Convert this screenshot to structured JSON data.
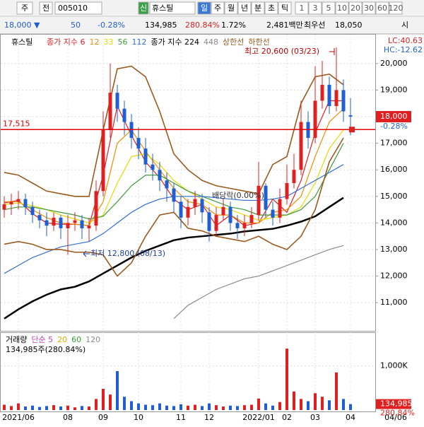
{
  "toolbar": {
    "market": "주",
    "mode": "전",
    "code": "005010",
    "badge": "신",
    "name": "휴스틸",
    "periods": [
      "일",
      "주",
      "월",
      "년",
      "분",
      "초",
      "틱"
    ],
    "intervals": [
      "1",
      "3",
      "5",
      "10",
      "20",
      "30",
      "60",
      "120"
    ]
  },
  "quote": {
    "price": "18,000",
    "arrow": "▼",
    "change": "50",
    "change_pct": "-0.28%",
    "volume": "134,985",
    "volume_ratio": "280.84%",
    "turnover_pct": "1.72%",
    "amount": "2,481백만",
    "best_label": "최우선",
    "best_price": "18,050",
    "extra": "시"
  },
  "chart_data": {
    "type": "candlestick",
    "title": "휴스틸",
    "corner_labels": [
      "LC:40.63",
      "HC:-12.62"
    ],
    "open": [
      14500,
      14700,
      14800,
      14900,
      14600,
      14300,
      14100,
      13900,
      14200,
      13800,
      14000,
      14100,
      13800,
      13900,
      15200,
      17500,
      18900,
      18300,
      17800,
      17200,
      16800,
      16200,
      16000,
      15600,
      15300,
      14800,
      14200,
      14600,
      14900,
      14400,
      13700,
      14300,
      14600,
      14000,
      13800,
      14000,
      14300,
      15400,
      14500,
      14200,
      14900,
      15500,
      16000,
      17800,
      17200,
      18600,
      19200,
      18400,
      19000,
      18050
    ],
    "high": [
      15000,
      15100,
      15200,
      15100,
      14800,
      14500,
      14400,
      14400,
      14300,
      14300,
      14400,
      14300,
      14200,
      15600,
      18200,
      20000,
      19200,
      18600,
      18100,
      17600,
      17200,
      16600,
      16300,
      15900,
      15500,
      15000,
      14900,
      15200,
      15100,
      14600,
      14600,
      14900,
      14800,
      14300,
      14300,
      14600,
      16300,
      15500,
      14800,
      15300,
      16200,
      16600,
      18600,
      18200,
      19900,
      20100,
      19500,
      20600,
      19400,
      18700
    ],
    "low": [
      14200,
      14300,
      14500,
      14300,
      14000,
      13800,
      13500,
      13700,
      13400,
      12800,
      13700,
      13400,
      13300,
      13700,
      15000,
      17200,
      17800,
      17300,
      16800,
      16400,
      15900,
      15600,
      15200,
      14800,
      14400,
      13800,
      13900,
      14300,
      14000,
      13300,
      13500,
      14100,
      13700,
      13400,
      13500,
      13800,
      14100,
      14200,
      13900,
      14000,
      14700,
      15300,
      15800,
      16800,
      17000,
      18300,
      18100,
      18200,
      17800,
      17300
    ],
    "close": [
      14700,
      14800,
      14900,
      14600,
      14300,
      14100,
      13900,
      14200,
      13800,
      14000,
      14100,
      13800,
      13900,
      15200,
      17500,
      18900,
      18300,
      17800,
      17200,
      16800,
      16200,
      16000,
      15600,
      15300,
      14800,
      14200,
      14600,
      14900,
      14400,
      13700,
      14300,
      14600,
      14000,
      13800,
      14000,
      14300,
      15400,
      14500,
      14200,
      14900,
      15500,
      16000,
      17800,
      17200,
      18600,
      19200,
      18400,
      19000,
      18200,
      18000
    ],
    "up_color": "#e02020",
    "down_color": "#1f5fd6",
    "line_x": [
      0,
      2,
      4,
      6,
      8,
      10,
      12,
      14,
      16,
      18,
      20,
      22,
      24,
      26,
      28,
      30,
      32,
      34,
      36,
      38,
      40,
      42,
      44,
      46,
      48
    ],
    "series": [
      {
        "name": "종가 지수 6",
        "color": "#e02020",
        "values": [
          14750,
          14850,
          14350,
          14000,
          13950,
          13950,
          13900,
          15800,
          18400,
          17300,
          16300,
          15700,
          14900,
          14500,
          14700,
          13900,
          14300,
          13900,
          14000,
          14900,
          14400,
          15600,
          17400,
          18600,
          18600
        ]
      },
      {
        "name": "12",
        "color": "#f08c00",
        "values": [
          14800,
          14800,
          14500,
          14200,
          14000,
          13950,
          13900,
          14800,
          17000,
          17500,
          16700,
          16000,
          15300,
          14800,
          14700,
          14300,
          14300,
          14000,
          14000,
          14400,
          14500,
          15000,
          16500,
          17800,
          18300
        ]
      },
      {
        "name": "33",
        "color": "#e8d800",
        "values": [
          14700,
          14750,
          14650,
          14500,
          14300,
          14150,
          14000,
          14300,
          15500,
          16500,
          16600,
          16200,
          15600,
          15200,
          14900,
          14600,
          14500,
          14300,
          14100,
          14200,
          14300,
          14600,
          15500,
          16800,
          17500
        ]
      },
      {
        "name": "56",
        "color": "#3c9a3c",
        "values": [
          14500,
          14600,
          14600,
          14500,
          14400,
          14300,
          14150,
          14250,
          14800,
          15400,
          15800,
          15800,
          15500,
          15200,
          15000,
          14800,
          14600,
          14500,
          14300,
          14300,
          14300,
          14500,
          15000,
          16000,
          17000
        ]
      },
      {
        "name": "112",
        "color": "#2f6fd8",
        "values": [
          12100,
          12400,
          12700,
          12900,
          13100,
          13200,
          13300,
          13600,
          14000,
          14400,
          14700,
          14900,
          15000,
          15000,
          15000,
          14950,
          14900,
          14850,
          14850,
          14900,
          15000,
          15300,
          15600,
          15900,
          16200
        ]
      },
      {
        "name": "종가 지수 224",
        "color": "#000000",
        "values": [
          10400,
          10750,
          11050,
          11300,
          11500,
          11600,
          11800,
          12100,
          12400,
          12700,
          12950,
          13150,
          13350,
          13450,
          13500,
          13550,
          13600,
          13680,
          13730,
          13780,
          13900,
          14050,
          14250,
          14600,
          14950
        ]
      },
      {
        "name": "448",
        "color": "#8c8c8c",
        "values": [
          null,
          null,
          null,
          null,
          null,
          null,
          null,
          null,
          null,
          null,
          null,
          null,
          10400,
          10900,
          11200,
          11500,
          11700,
          11900,
          12000,
          12200,
          12400,
          12600,
          12800,
          13000,
          13150
        ]
      },
      {
        "name": "상한선",
        "color": "#9a5a1e",
        "values": [
          15900,
          15800,
          15500,
          15200,
          15100,
          15000,
          15000,
          17500,
          19800,
          19900,
          19500,
          18200,
          16600,
          16000,
          15600,
          15400,
          15300,
          15200,
          15100,
          16200,
          16500,
          18500,
          19500,
          19600,
          19200
        ]
      },
      {
        "name": "하한선",
        "color": "#9a5a1e",
        "values": [
          13200,
          13300,
          13200,
          13000,
          13000,
          12900,
          12900,
          12800,
          12000,
          12500,
          13500,
          14300,
          14400,
          13800,
          13700,
          13500,
          13400,
          13300,
          13500,
          13200,
          13000,
          13500,
          14500,
          16300,
          17200
        ]
      }
    ],
    "ylim": [
      10020,
      21060
    ],
    "yticks": [
      {
        "value": 11000,
        "label": "11,000"
      },
      {
        "value": 12000,
        "label": "12,000"
      },
      {
        "value": 13000,
        "label": "13,000"
      },
      {
        "value": 14000,
        "label": "14,000"
      },
      {
        "value": 15000,
        "label": "15,000"
      },
      {
        "value": 16000,
        "label": "16,000"
      },
      {
        "value": 17000,
        "label": "17,000"
      },
      {
        "value": 18000,
        "label": "18,000"
      },
      {
        "value": 19000,
        "label": "19,000"
      },
      {
        "value": 20000,
        "label": "20,000"
      }
    ],
    "hline": {
      "value": 17515,
      "label": "17,515",
      "color": "#e00000"
    },
    "last": {
      "value": 18000,
      "label": "18,000",
      "change": "-0.28%"
    },
    "annotations": [
      "최고 20,600 (03/23)",
      "최저 12,800 (08/13)",
      "배당락(0.00%)"
    ],
    "x_labels": [
      {
        "at": 2,
        "label": "2021/06"
      },
      {
        "at": 9,
        "label": "08"
      },
      {
        "at": 14,
        "label": "09"
      },
      {
        "at": 19,
        "label": "10"
      },
      {
        "at": 25,
        "label": "11"
      },
      {
        "at": 29,
        "label": "12"
      },
      {
        "at": 36,
        "label": "2022/01"
      },
      {
        "at": 40,
        "label": "02"
      },
      {
        "at": 44,
        "label": "03"
      },
      {
        "at": 49,
        "label": "04"
      }
    ],
    "x_corner": "04/06",
    "volume": {
      "name": "거래량",
      "legend": [
        "단순 5",
        "20",
        "60",
        "120"
      ],
      "legend_colors": [
        "#c040c0",
        "#e0b000",
        "#3c9a3c",
        "#8c8c8c"
      ],
      "summary": "134,985주(280.84%)",
      "values": [
        120000,
        90000,
        150000,
        80000,
        100000,
        70000,
        90000,
        110000,
        80000,
        100000,
        60000,
        90000,
        80000,
        250000,
        480000,
        350000,
        880000,
        300000,
        200000,
        150000,
        120000,
        110000,
        150000,
        100000,
        90000,
        130000,
        100000,
        120000,
        90000,
        150000,
        110000,
        80000,
        100000,
        90000,
        110000,
        120000,
        260000,
        150000,
        100000,
        180000,
        1390000,
        420000,
        250000,
        200000,
        380000,
        300000,
        220000,
        850000,
        250000,
        134985
      ],
      "ylim": [
        0,
        1728000
      ],
      "yticks": [
        {
          "value": 1000000,
          "label": "1,000K"
        }
      ],
      "last": {
        "value": 134985,
        "label": "134,985",
        "ratio": "280.84%"
      }
    }
  }
}
